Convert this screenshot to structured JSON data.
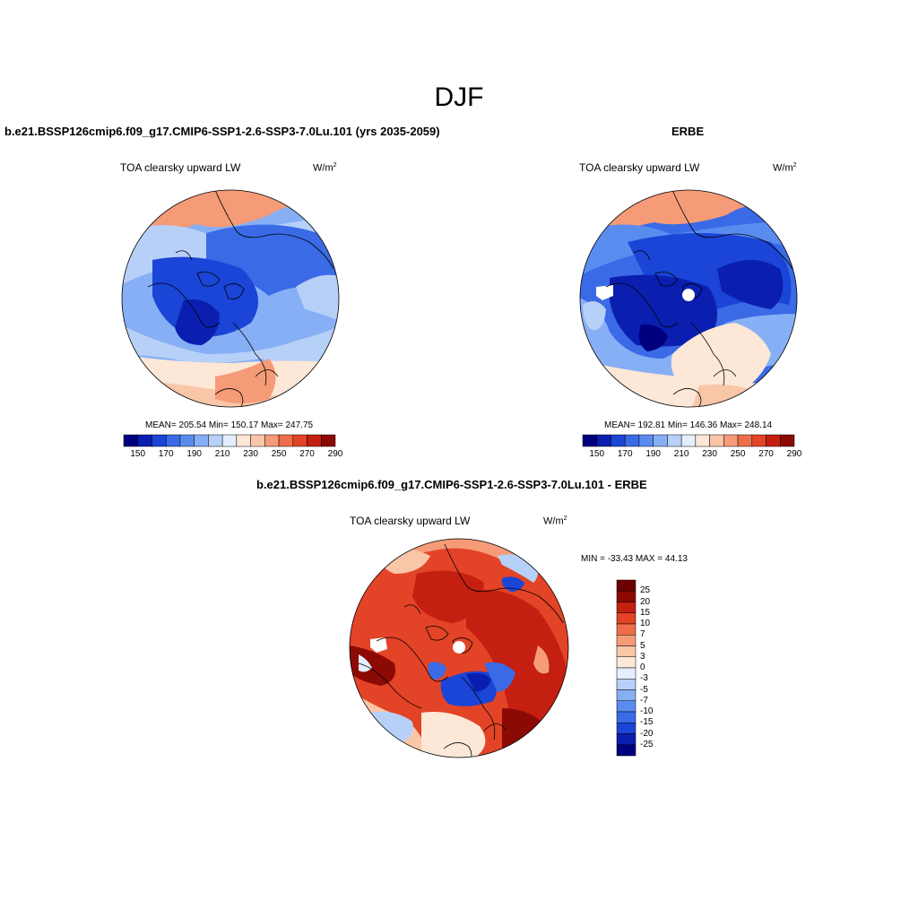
{
  "figure": {
    "title": "DJF"
  },
  "panels": [
    {
      "title": "b.e21.BSSP126cmip6.f09_g17.CMIP6-SSP1-2.6-SSP3-7.0Lu.101 (yrs 2035-2059)",
      "variable": "TOA clearsky upward LW",
      "units_base": "W/m",
      "units_exp": "2",
      "stats": "MEAN= 205.54  Min= 150.17  Max= 247.75",
      "colorbar_ticks": [
        "150",
        "170",
        "190",
        "210",
        "230",
        "250",
        "270",
        "290"
      ]
    },
    {
      "title": "ERBE",
      "variable": "TOA clearsky upward LW",
      "units_base": "W/m",
      "units_exp": "2",
      "stats": "MEAN= 192.81  Min= 146.36  Max= 248.14",
      "colorbar_ticks": [
        "150",
        "170",
        "190",
        "210",
        "230",
        "250",
        "270",
        "290"
      ]
    },
    {
      "title": "b.e21.BSSP126cmip6.f09_g17.CMIP6-SSP1-2.6-SSP3-7.0Lu.101 - ERBE",
      "variable": "TOA clearsky upward LW",
      "units_base": "W/m",
      "units_exp": "2",
      "stats": "MIN = -33.43 MAX =  44.13",
      "colorbar_ticks": [
        "25",
        "20",
        "15",
        "10",
        "7",
        "5",
        "3",
        "0",
        "-3",
        "-5",
        "-7",
        "-10",
        "-15",
        "-20",
        "-25"
      ]
    }
  ],
  "colors": {
    "abs_scale": [
      "#00007f",
      "#0a1fb0",
      "#1a45d6",
      "#3a6ae6",
      "#5a8cf0",
      "#87aff5",
      "#b7d0f8",
      "#e4eefc",
      "#fde7d6",
      "#f9c6a8",
      "#f59b78",
      "#ee6e4a",
      "#e34326",
      "#c41f10",
      "#8c0a04"
    ],
    "diff_scale": [
      "#00007f",
      "#0a1fb0",
      "#1a45d6",
      "#3a6ae6",
      "#5a8cf0",
      "#87aff5",
      "#b7d0f8",
      "#e4eefc",
      "#fde7d6",
      "#f9c6a8",
      "#f59b78",
      "#ee6e4a",
      "#e34326",
      "#c41f10",
      "#8c0a04",
      "#6b0000"
    ],
    "coast": "#000000"
  }
}
